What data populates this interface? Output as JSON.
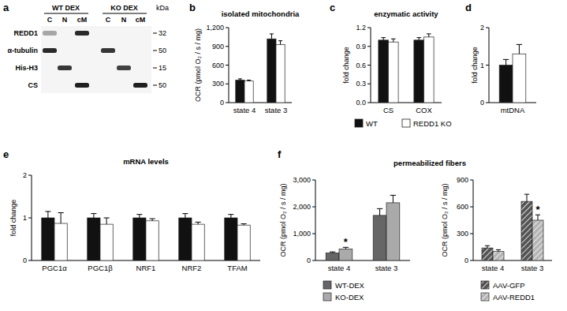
{
  "blot": {
    "panel": "a",
    "groups": [
      "WT DEX",
      "KO DEX"
    ],
    "lanes": [
      "C",
      "N",
      "cM"
    ],
    "unit": "kDa",
    "rows": [
      {
        "label": "REDD1",
        "kda": 32
      },
      {
        "label": "α-tubulin",
        "kda": 50
      },
      {
        "label": "His-H3",
        "kda": 15
      },
      {
        "label": "CS",
        "kda": 50
      }
    ]
  },
  "legend": [
    {
      "name": "WT",
      "color": "#111111"
    },
    {
      "name": "REDD1 KO",
      "color": "#ffffff"
    }
  ],
  "chart_data": [
    {
      "panel": "b",
      "type": "bar",
      "title": "isolated mitochondria",
      "ylabel": "OCR (pmol O₂ / s / mg)",
      "categories": [
        "state 4",
        "state 3"
      ],
      "series": [
        {
          "values": [
            360,
            1020
          ],
          "errors": [
            20,
            80
          ]
        },
        {
          "values": [
            345,
            930
          ],
          "errors": [
            15,
            60
          ]
        }
      ],
      "ylim": [
        0,
        1200
      ],
      "yticks": [
        0,
        300,
        600,
        900,
        {
          "value": 1200,
          "label": "1,200"
        }
      ]
    },
    {
      "panel": "c",
      "type": "bar",
      "title": "enzymatic activity",
      "ylabel": "fold change",
      "categories": [
        "CS",
        "COX"
      ],
      "series": [
        {
          "values": [
            1.0,
            1.0
          ],
          "errors": [
            0.04,
            0.04
          ]
        },
        {
          "values": [
            0.97,
            1.05
          ],
          "errors": [
            0.05,
            0.05
          ]
        }
      ],
      "ylim": [
        0,
        1.2
      ],
      "yticks": [
        {
          "value": 0,
          "label": "0.0"
        },
        0.3,
        0.6,
        0.9,
        1.2
      ]
    },
    {
      "panel": "d",
      "type": "bar",
      "ylabel": "fold change",
      "categories": [
        "mtDNA"
      ],
      "series": [
        {
          "values": [
            1.0
          ],
          "errors": [
            0.15
          ]
        },
        {
          "values": [
            1.3
          ],
          "errors": [
            0.25
          ]
        }
      ],
      "ylim": [
        0,
        2
      ],
      "yticks": [
        0,
        1,
        2
      ]
    },
    {
      "panel": "e",
      "type": "bar",
      "title": "mRNA levels",
      "ylabel": "fold change",
      "categories": [
        "PGC1α",
        "PGC1β",
        "NRF1",
        "NRF2",
        "TFAM"
      ],
      "series": [
        {
          "values": [
            1.0,
            1.0,
            1.0,
            1.0,
            1.0
          ],
          "errors": [
            0.15,
            0.1,
            0.08,
            0.1,
            0.08
          ]
        },
        {
          "values": [
            0.87,
            0.85,
            0.93,
            0.85,
            0.83
          ],
          "errors": [
            0.25,
            0.15,
            0.05,
            0.05,
            0.03
          ]
        }
      ],
      "ylim": [
        0,
        2
      ],
      "yticks": [
        0,
        1,
        2
      ]
    },
    {
      "panel": "f",
      "type": "bar",
      "title": "permeabilized fibers",
      "ylabel": "OCR (pmol O₂ / s / mg)",
      "categories": [
        "state 4",
        "state 3"
      ],
      "series": [
        {
          "name": "WT-DEX",
          "color": "#666666",
          "values": [
            280,
            1680
          ],
          "errors": [
            40,
            250
          ]
        },
        {
          "name": "KO-DEX",
          "color": "#aaaaaa",
          "values": [
            430,
            2150
          ],
          "errors": [
            60,
            280
          ]
        }
      ],
      "ylim": [
        0,
        3000
      ],
      "yticks": [
        0,
        {
          "value": 1000,
          "label": "1,000"
        },
        {
          "value": 2000,
          "label": "2,000"
        },
        {
          "value": 3000,
          "label": "3,000"
        }
      ],
      "annotations": [
        {
          "text": "*",
          "series": 1,
          "category": 0
        }
      ],
      "legend": "bottom"
    },
    {
      "type": "bar",
      "ylabel": "OCR (pmol O₂ / s / mg)",
      "categories": [
        "state 4",
        "state 3"
      ],
      "series": [
        {
          "name": "AAV-GFP",
          "color": "#555555",
          "line_style": "hatched",
          "values": [
            140,
            660
          ],
          "errors": [
            25,
            80
          ]
        },
        {
          "name": "AAV-REDD1",
          "color": "#b5b5b5",
          "line_style": "hatched",
          "values": [
            100,
            450
          ],
          "errors": [
            20,
            60
          ]
        }
      ],
      "ylim": [
        0,
        900
      ],
      "yticks": [
        0,
        300,
        600,
        900
      ],
      "annotations": [
        {
          "text": "*",
          "series": 1,
          "category": 1
        }
      ],
      "legend": "bottom"
    }
  ]
}
